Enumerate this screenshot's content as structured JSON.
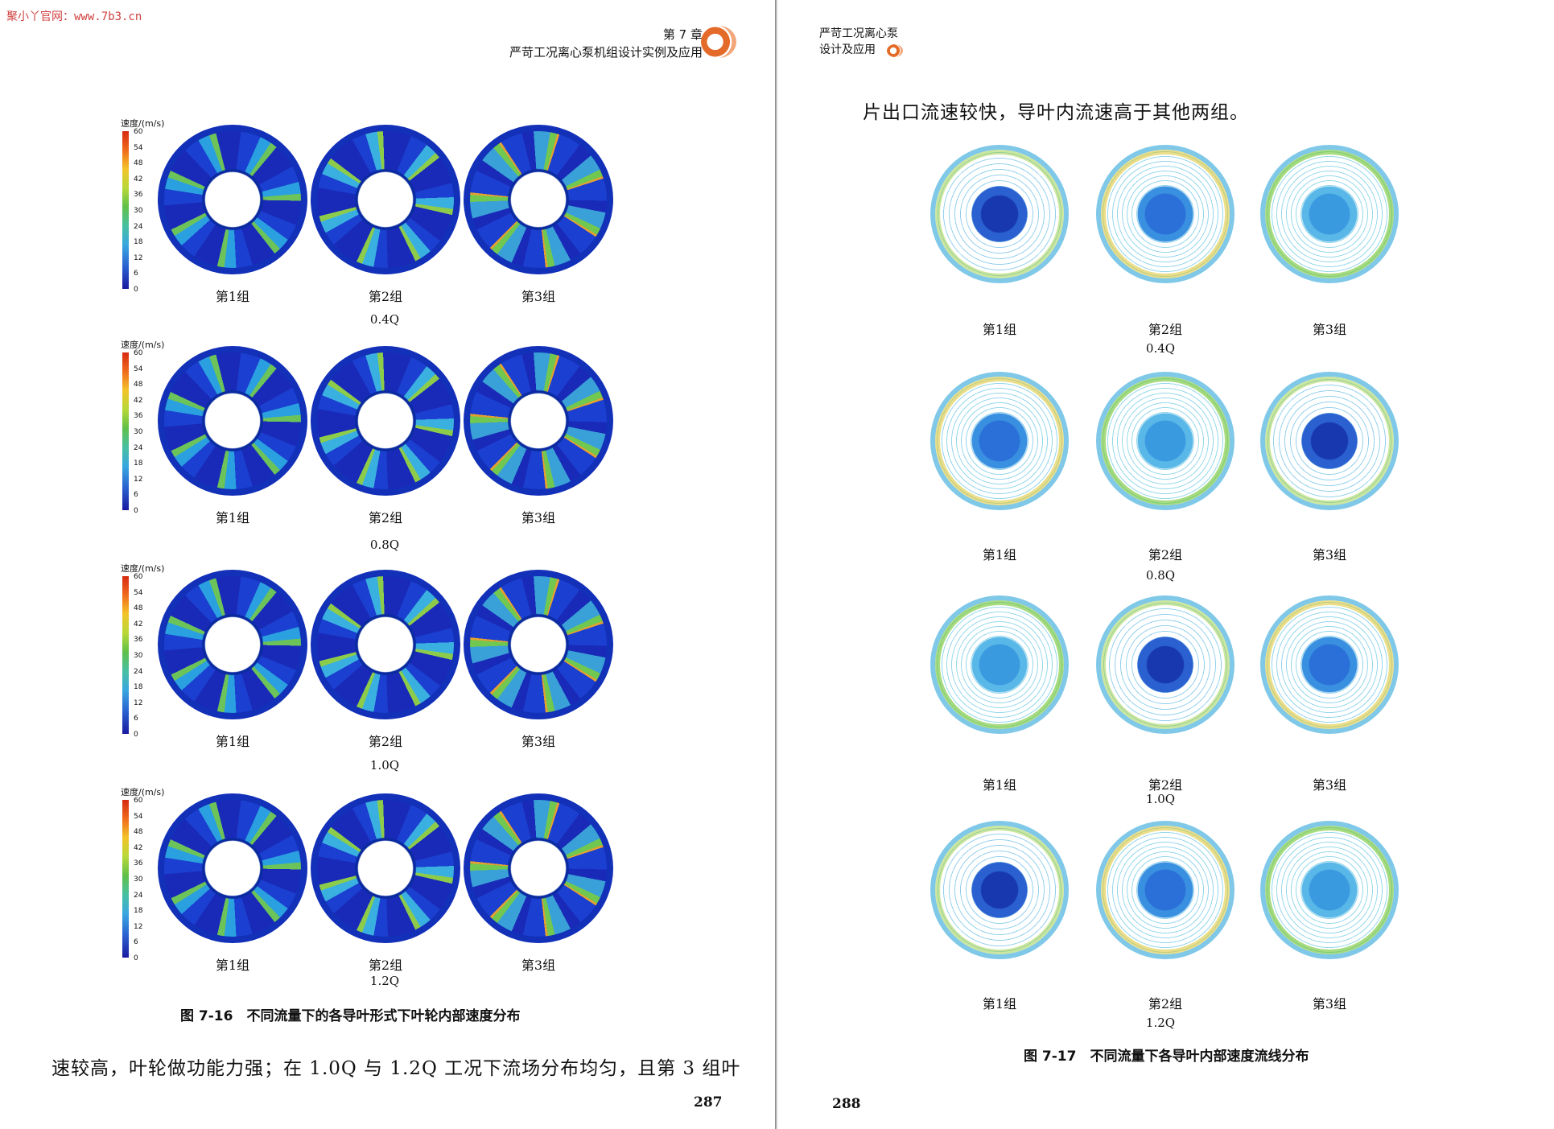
{
  "watermark": "聚小丫官网：www.7b3.cn",
  "left_page": {
    "header_chapter": "第 7 章",
    "header_title": "严苛工况离心泵机组设计实例及应用",
    "legend": {
      "title": "速度/(m/s)",
      "ticks": [
        "60",
        "54",
        "48",
        "42",
        "36",
        "30",
        "24",
        "18",
        "12",
        "6",
        "0"
      ]
    },
    "groups": [
      "第1组",
      "第2组",
      "第3组"
    ],
    "flow_rates": [
      "0.4Q",
      "0.8Q",
      "1.0Q",
      "1.2Q"
    ],
    "caption": "图 7-16　不同流量下的各导叶形式下叶轮内部速度分布",
    "body_text": "速较高，叶轮做功能力强；在 1.0Q 与 1.2Q 工况下流场分布均匀，且第 3 组叶",
    "page_number": "287"
  },
  "right_page": {
    "header_line1": "严苛工况离心泵",
    "header_line2": "设计及应用",
    "body_text": "片出口流速较快，导叶内流速高于其他两组。",
    "groups": [
      "第1组",
      "第2组",
      "第3组"
    ],
    "flow_rates": [
      "0.4Q",
      "0.8Q",
      "1.0Q",
      "1.2Q"
    ],
    "caption": "图 7-17　不同流量下各导叶内部速度流线分布",
    "page_number": "288"
  }
}
